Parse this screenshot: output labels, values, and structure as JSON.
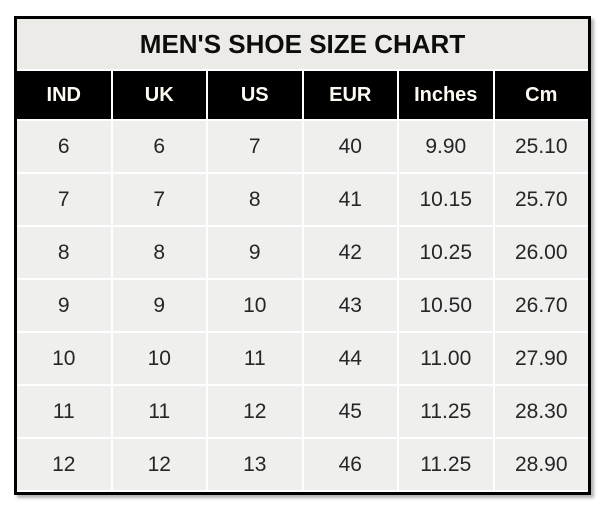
{
  "table_style": {
    "border_color": "#000000",
    "title_bg": "#edebe8",
    "header_bg": "#000000",
    "header_text_color": "#fdfaf1",
    "cell_bg": "#efefee",
    "cell_text_color": "#262626"
  },
  "chart_data": {
    "type": "table",
    "title": "MEN'S SHOE SIZE CHART",
    "columns": [
      "IND",
      "UK",
      "US",
      "EUR",
      "Inches",
      "Cm"
    ],
    "rows": [
      [
        "6",
        "6",
        "7",
        "40",
        "9.90",
        "25.10"
      ],
      [
        "7",
        "7",
        "8",
        "41",
        "10.15",
        "25.70"
      ],
      [
        "8",
        "8",
        "9",
        "42",
        "10.25",
        "26.00"
      ],
      [
        "9",
        "9",
        "10",
        "43",
        "10.50",
        "26.70"
      ],
      [
        "10",
        "10",
        "11",
        "44",
        "11.00",
        "27.90"
      ],
      [
        "11",
        "11",
        "12",
        "45",
        "11.25",
        "28.30"
      ],
      [
        "12",
        "12",
        "13",
        "46",
        "11.25",
        "28.90"
      ]
    ]
  }
}
